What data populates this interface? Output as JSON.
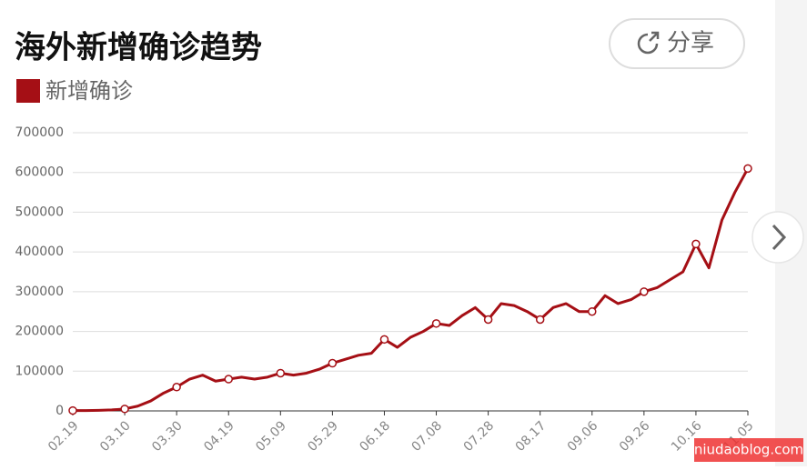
{
  "header": {
    "title": "海外新增确诊趋势",
    "share": "分享"
  },
  "watermark": "niudaoblog.com",
  "chart_data": {
    "type": "line",
    "categories": [
      "02.19",
      null,
      null,
      null,
      "03.10",
      null,
      null,
      null,
      "03.30",
      null,
      null,
      null,
      "04.19",
      null,
      null,
      null,
      "05.09",
      null,
      null,
      null,
      "05.29",
      null,
      null,
      null,
      "06.18",
      null,
      null,
      null,
      "07.08",
      null,
      null,
      null,
      "07.28",
      null,
      null,
      null,
      "08.17",
      null,
      null,
      null,
      "09.06",
      null,
      null,
      null,
      "09.26",
      null,
      null,
      null,
      "10.16",
      null,
      null,
      null,
      "11.05"
    ],
    "series": [
      {
        "name": "新增确诊",
        "color": "#a50f15",
        "values": [
          1000,
          1000,
          1500,
          2500,
          5000,
          12000,
          25000,
          45000,
          60000,
          80000,
          90000,
          75000,
          80000,
          85000,
          80000,
          85000,
          95000,
          90000,
          95000,
          105000,
          120000,
          130000,
          140000,
          145000,
          180000,
          160000,
          185000,
          200000,
          220000,
          215000,
          240000,
          260000,
          230000,
          270000,
          265000,
          250000,
          230000,
          260000,
          270000,
          250000,
          250000,
          290000,
          270000,
          280000,
          300000,
          310000,
          330000,
          350000,
          420000,
          360000,
          480000,
          550000,
          610000
        ]
      }
    ],
    "ylim": [
      0,
      700000
    ],
    "yticks": [
      0,
      100000,
      200000,
      300000,
      400000,
      500000,
      600000,
      700000
    ],
    "grid": true
  }
}
